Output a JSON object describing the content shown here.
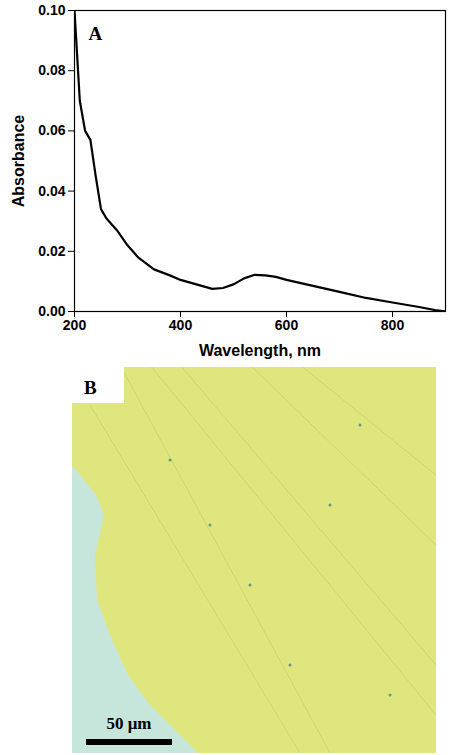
{
  "chart_data": {
    "type": "line",
    "annotations": [
      "A"
    ],
    "x_label": "Wavelength, nm",
    "y_label": "Absorbance",
    "x": [
      200,
      205,
      210,
      220,
      230,
      240,
      250,
      260,
      280,
      300,
      320,
      350,
      380,
      400,
      430,
      460,
      480,
      500,
      520,
      540,
      560,
      580,
      600,
      650,
      700,
      750,
      800,
      850,
      880,
      900
    ],
    "values": [
      0.1,
      0.085,
      0.07,
      0.06,
      0.057,
      0.045,
      0.034,
      0.031,
      0.027,
      0.022,
      0.018,
      0.014,
      0.012,
      0.0105,
      0.009,
      0.0075,
      0.0078,
      0.009,
      0.011,
      0.0122,
      0.012,
      0.0115,
      0.0105,
      0.0085,
      0.0065,
      0.0045,
      0.003,
      0.0015,
      0.0005,
      0
    ],
    "color": "#000000",
    "xlim": [
      200,
      900
    ],
    "xticks": [
      200,
      400,
      600,
      800
    ],
    "ylim": [
      0,
      0.1
    ],
    "yticks": [
      {
        "value": 0,
        "label": "0.00"
      },
      {
        "value": 0.02,
        "label": "0.02"
      },
      {
        "value": 0.04,
        "label": "0.04"
      },
      {
        "value": 0.06,
        "label": "0.06"
      },
      {
        "value": 0.08,
        "label": "0.08"
      },
      {
        "value": 0.1,
        "label": "0.10"
      }
    ],
    "grid": false
  },
  "micrograph": {
    "panel_label": "B",
    "scale_bar_label": "50 μm"
  }
}
